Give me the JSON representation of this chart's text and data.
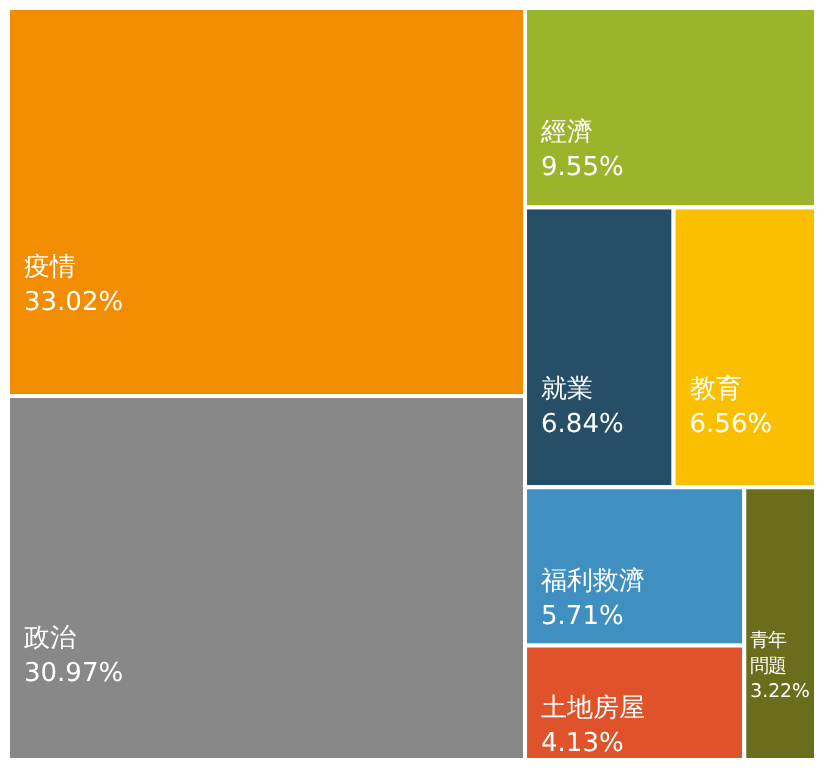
{
  "chart_data": {
    "type": "other",
    "categories": [
      "疫情",
      "政治",
      "經濟",
      "就業",
      "教育",
      "福利救濟",
      "土地房屋",
      "青年問題"
    ],
    "values": [
      33.02,
      30.97,
      9.55,
      6.84,
      6.56,
      5.71,
      4.13,
      3.22
    ],
    "value_labels": [
      "33.02%",
      "30.97%",
      "9.55%",
      "6.84%",
      "6.56%",
      "5.71%",
      "4.13%",
      "3.22%"
    ],
    "colors": [
      "#f28c00",
      "#888888",
      "#9ab52c",
      "#264e66",
      "#fac000",
      "#3f8fc0",
      "#e0522a",
      "#6a6e1c"
    ]
  }
}
